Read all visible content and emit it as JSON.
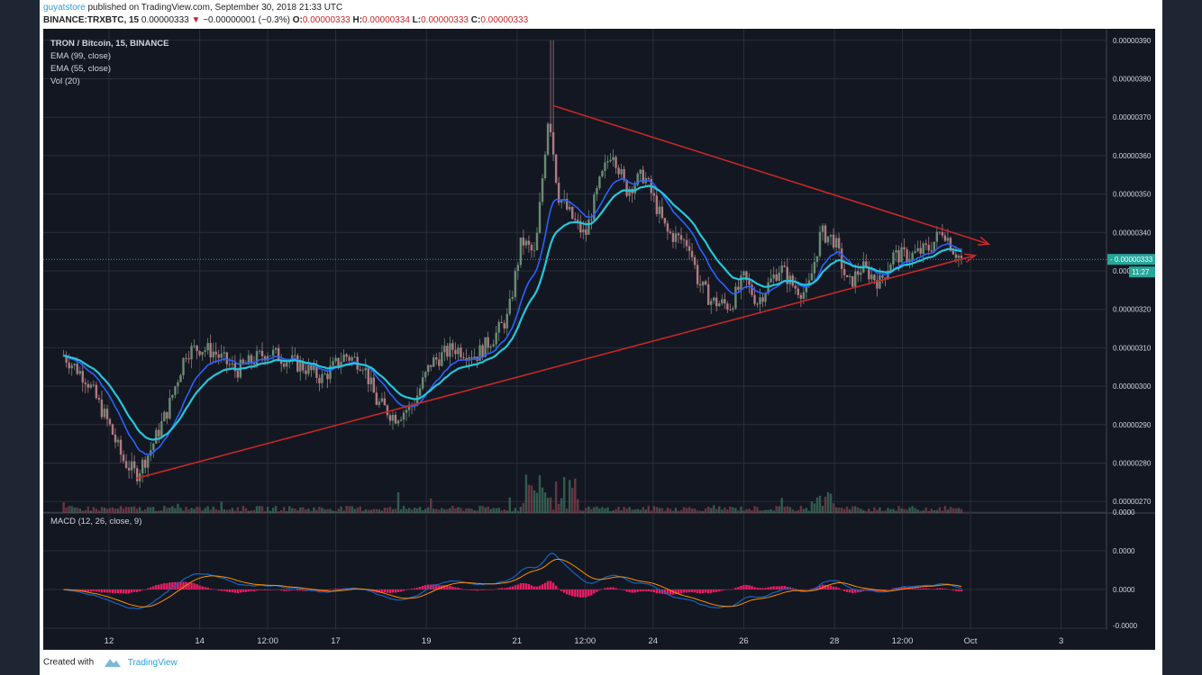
{
  "header": {
    "user": "guyatstore",
    "published_text": "published on TradingView.com, September 30, 2018 21:33 UTC",
    "symbol": "BINANCE:TRXBTC, 15",
    "last": "0.00000333",
    "change": "−0.00000001 (−0.3%)",
    "o_label": "O:",
    "o_value": "0.00000333",
    "h_label": "H:",
    "h_value": "0.00000334",
    "l_label": "L:",
    "l_value": "0.00000333",
    "c_label": "C:",
    "c_value": "0.00000333"
  },
  "legend": {
    "line1": "TRON / Bitcoin, 15, BINANCE",
    "line2": "EMA (99, close)",
    "line3": "EMA (55, close)",
    "line4": "Vol (20)",
    "macd": "MACD (12, 26, close, 9)"
  },
  "price_badge": "0.00000333",
  "time_badge": "11:27",
  "footer": {
    "created": "Created with",
    "brand": "TradingView"
  },
  "colors": {
    "background": "#131722",
    "grid": "#2a2e39",
    "up": "#6b8b74",
    "down": "#b07a80",
    "ema_fast": "#26c6da",
    "ema_slow": "#2962ff",
    "trendline": "#c62828",
    "macd_line": "#1565c0",
    "signal_line": "#ff8f00",
    "histogram": "#e91e63",
    "price_line": "#26a69a"
  },
  "chart_data": [
    {
      "type": "candlestick",
      "title": "TRON / Bitcoin, 15, BINANCE",
      "x_ticks": [
        "12",
        "14",
        "12:00",
        "17",
        "19",
        "21",
        "12:00",
        "24",
        "26",
        "28",
        "12:00",
        "Oct",
        "3"
      ],
      "y_ticks": [
        "0.00000270",
        "0.00000280",
        "0.00000290",
        "0.00000300",
        "0.00000310",
        "0.00000320",
        "0.00000330",
        "0.00000340",
        "0.00000350",
        "0.00000360",
        "0.00000370",
        "0.00000380",
        "0.00000390"
      ],
      "ylim": [
        2.67e-06,
        3.93e-06
      ],
      "last_price": 3.33e-06,
      "approx_close_path": [
        {
          "t": 11.0,
          "v": 3.08e-06
        },
        {
          "t": 11.5,
          "v": 3.02e-06
        },
        {
          "t": 12.0,
          "v": 2.9e-06
        },
        {
          "t": 12.3,
          "v": 2.81e-06
        },
        {
          "t": 12.6,
          "v": 2.77e-06
        },
        {
          "t": 12.9,
          "v": 2.83e-06
        },
        {
          "t": 13.3,
          "v": 2.94e-06
        },
        {
          "t": 13.7,
          "v": 3.09e-06
        },
        {
          "t": 14.0,
          "v": 3.1e-06
        },
        {
          "t": 14.3,
          "v": 3.09e-06
        },
        {
          "t": 14.8,
          "v": 3.04e-06
        },
        {
          "t": 15.5,
          "v": 3.09e-06
        },
        {
          "t": 16.3,
          "v": 3.05e-06
        },
        {
          "t": 16.7,
          "v": 3.02e-06
        },
        {
          "t": 17.2,
          "v": 3.08e-06
        },
        {
          "t": 17.6,
          "v": 3.06e-06
        },
        {
          "t": 17.9,
          "v": 2.96e-06
        },
        {
          "t": 18.3,
          "v": 2.92e-06
        },
        {
          "t": 18.7,
          "v": 2.95e-06
        },
        {
          "t": 19.1,
          "v": 3.06e-06
        },
        {
          "t": 19.6,
          "v": 3.1e-06
        },
        {
          "t": 20.1,
          "v": 3.08e-06
        },
        {
          "t": 20.5,
          "v": 3.13e-06
        },
        {
          "t": 20.8,
          "v": 3.18e-06
        },
        {
          "t": 21.1,
          "v": 3.38e-06
        },
        {
          "t": 21.4,
          "v": 3.34e-06
        },
        {
          "t": 21.7,
          "v": 3.72e-06
        },
        {
          "t": 21.9,
          "v": 3.5e-06
        },
        {
          "t": 22.2,
          "v": 3.44e-06
        },
        {
          "t": 22.5,
          "v": 3.39e-06
        },
        {
          "t": 22.8,
          "v": 3.52e-06
        },
        {
          "t": 23.1,
          "v": 3.62e-06
        },
        {
          "t": 23.4,
          "v": 3.51e-06
        },
        {
          "t": 23.8,
          "v": 3.55e-06
        },
        {
          "t": 24.3,
          "v": 3.4e-06
        },
        {
          "t": 24.8,
          "v": 3.37e-06
        },
        {
          "t": 25.0,
          "v": 3.27e-06
        },
        {
          "t": 25.3,
          "v": 3.22e-06
        },
        {
          "t": 25.7,
          "v": 3.21e-06
        },
        {
          "t": 26.0,
          "v": 3.28e-06
        },
        {
          "t": 26.3,
          "v": 3.22e-06
        },
        {
          "t": 26.8,
          "v": 3.31e-06
        },
        {
          "t": 27.1,
          "v": 3.26e-06
        },
        {
          "t": 27.4,
          "v": 3.24e-06
        },
        {
          "t": 27.7,
          "v": 3.4e-06
        },
        {
          "t": 28.0,
          "v": 3.38e-06
        },
        {
          "t": 28.3,
          "v": 3.26e-06
        },
        {
          "t": 28.6,
          "v": 3.31e-06
        },
        {
          "t": 29.0,
          "v": 3.27e-06
        },
        {
          "t": 29.3,
          "v": 3.34e-06
        },
        {
          "t": 29.7,
          "v": 3.34e-06
        },
        {
          "t": 30.1,
          "v": 3.36e-06
        },
        {
          "t": 30.4,
          "v": 3.41e-06
        },
        {
          "t": 30.6,
          "v": 3.36e-06
        },
        {
          "t": 30.8,
          "v": 3.33e-06
        }
      ],
      "trendlines": [
        {
          "name": "upper",
          "from": {
            "t": 21.8,
            "v": 3.73e-06
          },
          "to": {
            "t": 31.4,
            "v": 3.37e-06
          }
        },
        {
          "name": "lower",
          "from": {
            "t": 12.6,
            "v": 2.76e-06
          },
          "to": {
            "t": 31.1,
            "v": 3.34e-06
          }
        }
      ]
    },
    {
      "type": "line",
      "title": "MACD (12, 26, close, 9)",
      "y_ticks": [
        "0.0000",
        "0.0000",
        "0.0000",
        "-0.0000"
      ],
      "series": [
        {
          "values": "MACD"
        },
        {
          "values": "Signal"
        },
        {
          "values": "Histogram"
        }
      ]
    }
  ]
}
